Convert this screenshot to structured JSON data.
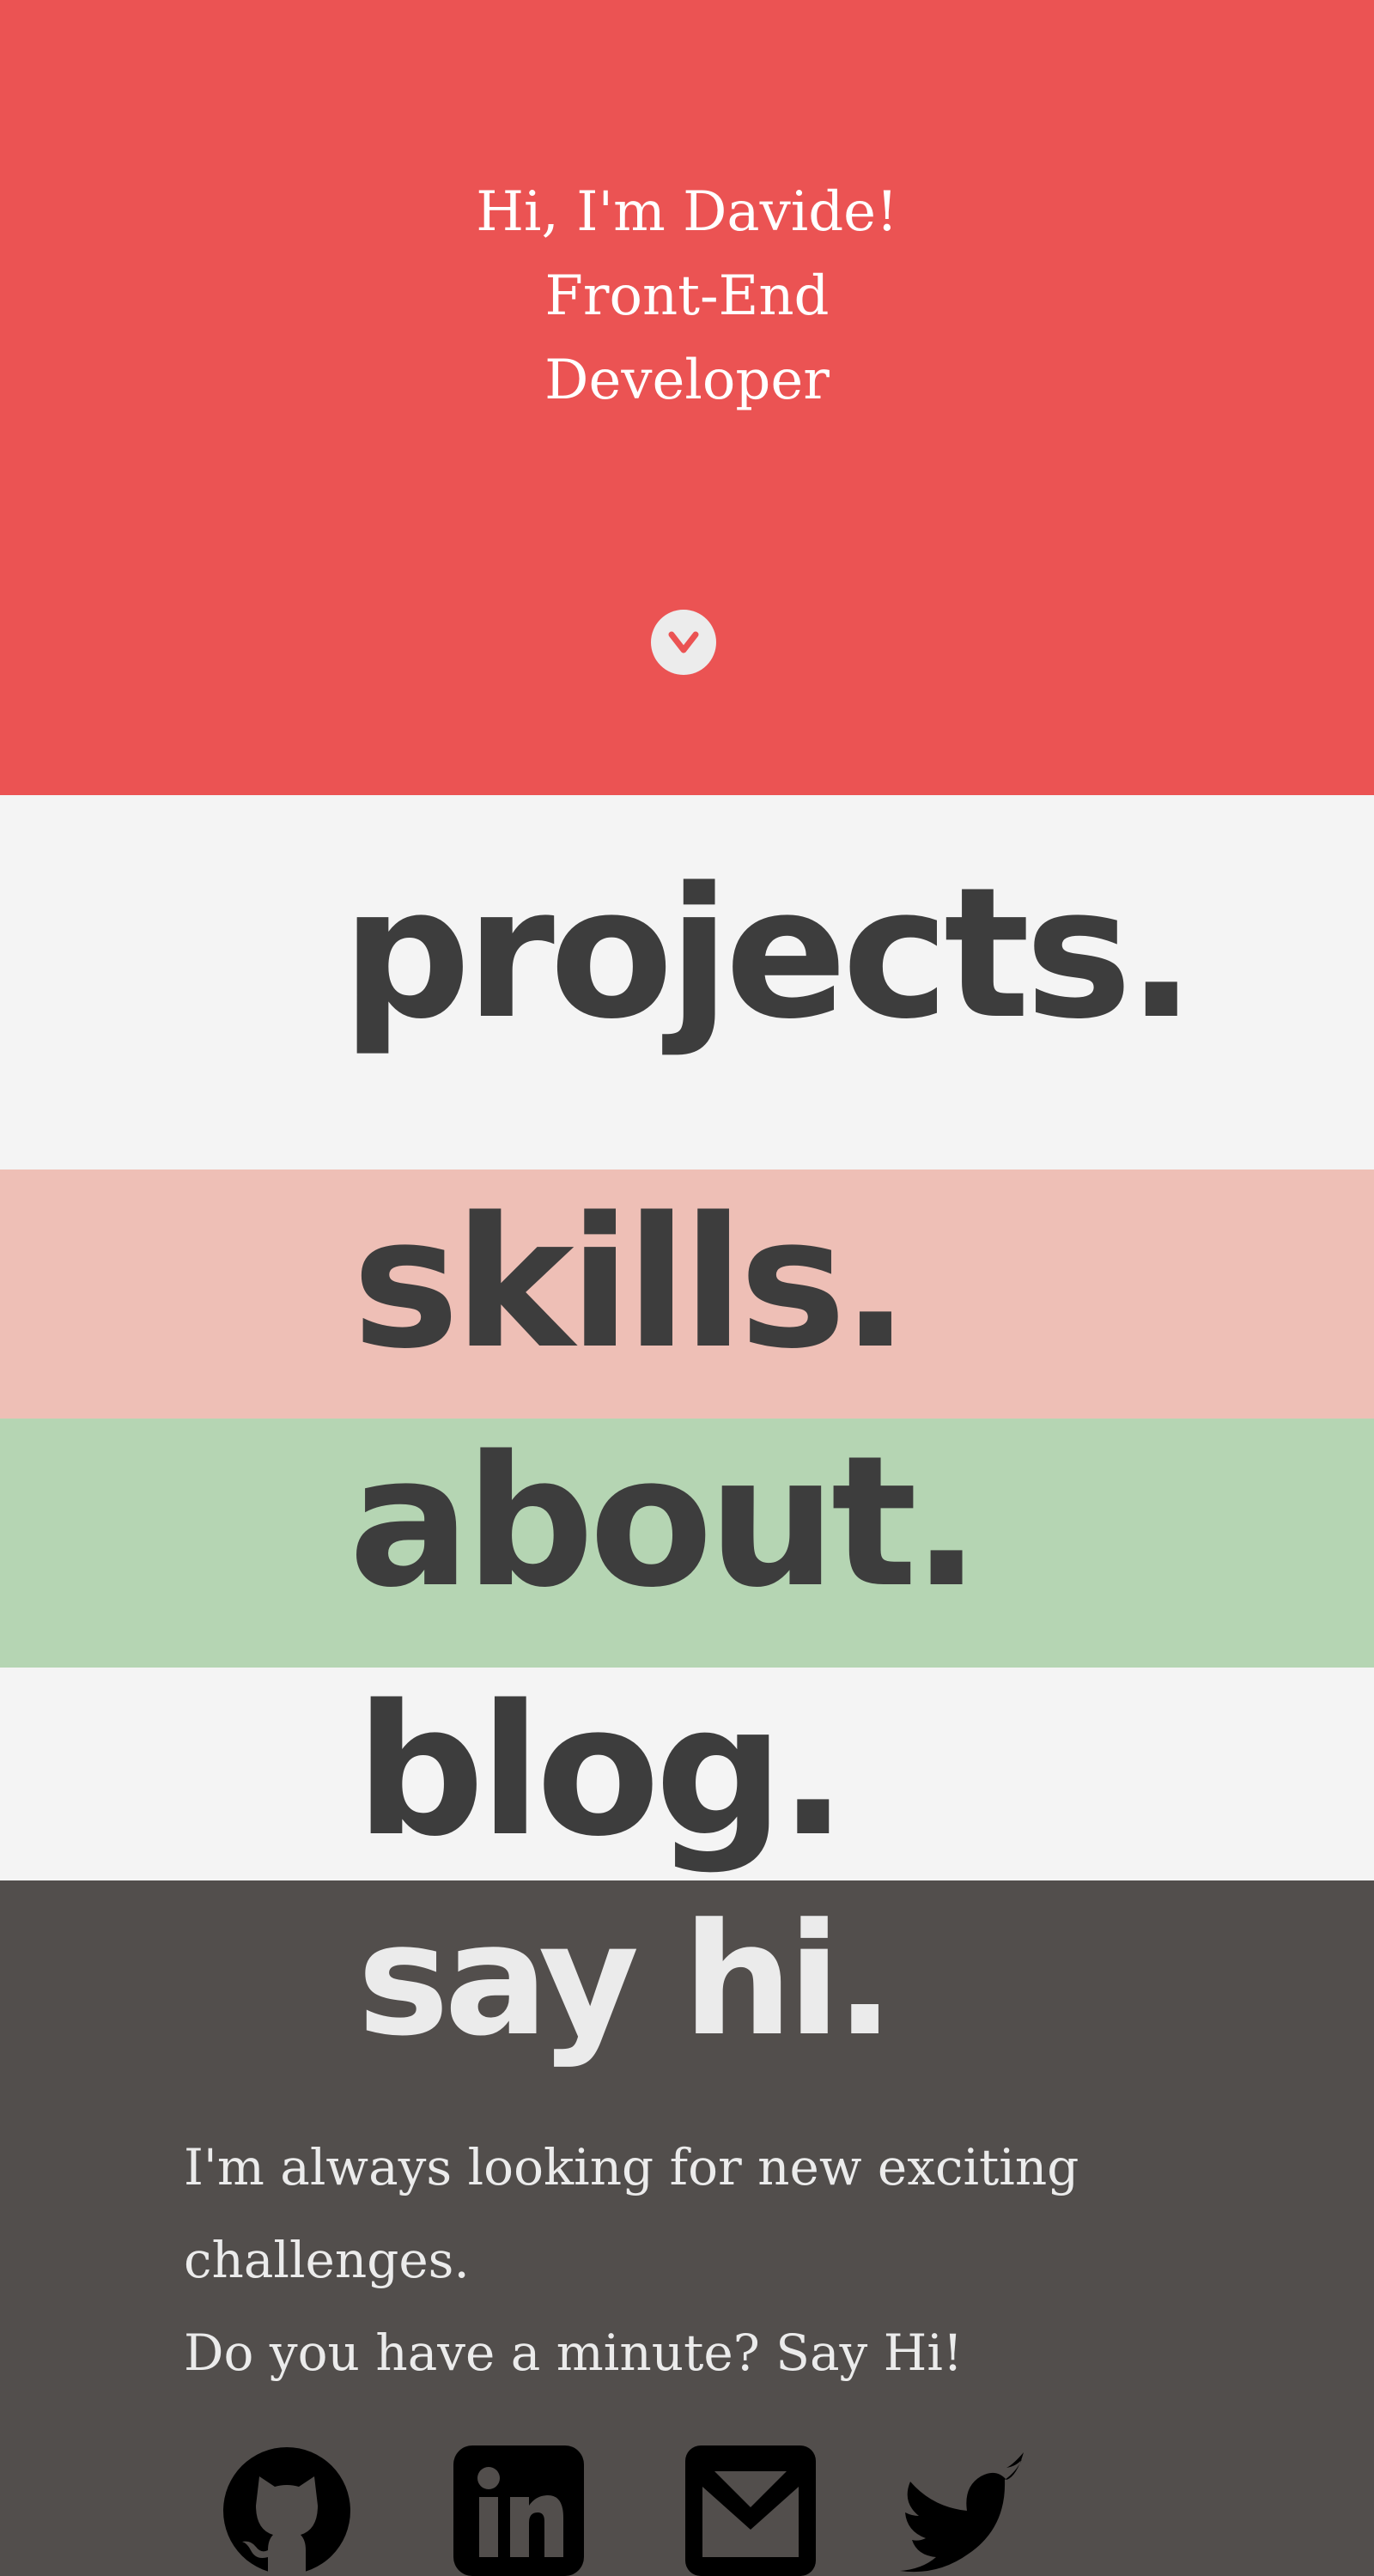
{
  "hero": {
    "line1": "Hi, I'm Davide!",
    "line2": "Front-End",
    "line3": "Developer",
    "scroll_icon": "chevron-down-icon",
    "background": "#EB5353"
  },
  "nav": {
    "projects": "projects.",
    "skills": "skills.",
    "about": "about.",
    "blog": "blog."
  },
  "contact": {
    "title": "say hi.",
    "line1": "I'm always looking for new exciting",
    "line2": "challenges.",
    "line3": "Do you have a minute? Say Hi!"
  },
  "social": [
    {
      "icon": "github-icon"
    },
    {
      "icon": "linkedin-icon"
    },
    {
      "icon": "mail-icon"
    },
    {
      "icon": "twitter-icon"
    }
  ],
  "colors": {
    "hero": "#EB5353",
    "projects_bg": "#F4F4F4",
    "skills_bg": "#EEBFB6",
    "about_bg": "#B5D5B3",
    "blog_bg": "#F4F4F4",
    "contact_bg": "#524E4C",
    "heading_dark": "#3D3D3D",
    "heading_light": "#EBEBEB"
  }
}
